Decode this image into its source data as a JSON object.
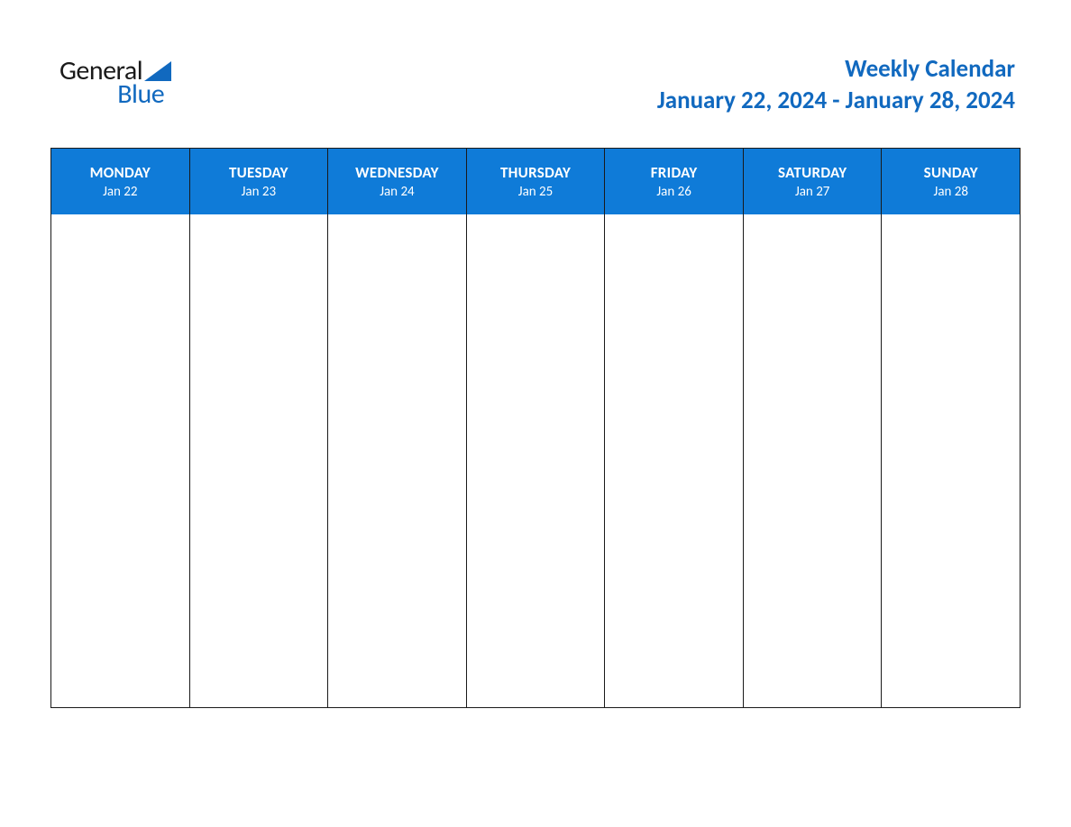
{
  "logo": {
    "text_top": "General",
    "text_bottom": "Blue",
    "top_color": "#1a1a1a",
    "bottom_color": "#1169bf",
    "triangle_color": "#1169bf"
  },
  "header": {
    "title": "Weekly Calendar",
    "date_range": "January 22, 2024 - January 28, 2024",
    "title_color": "#1169bf",
    "title_fontsize": 27,
    "title_fontweight": 700
  },
  "calendar": {
    "type": "table",
    "header_bg": "#0f7bd8",
    "header_text_color": "#ffffff",
    "border_color": "#1a1a1a",
    "body_bg": "#ffffff",
    "day_name_fontsize": 17,
    "day_date_fontsize": 15,
    "columns": [
      {
        "day": "MONDAY",
        "date": "Jan 22"
      },
      {
        "day": "TUESDAY",
        "date": "Jan 23"
      },
      {
        "day": "WEDNESDAY",
        "date": "Jan 24"
      },
      {
        "day": "THURSDAY",
        "date": "Jan 25"
      },
      {
        "day": "FRIDAY",
        "date": "Jan 26"
      },
      {
        "day": "SATURDAY",
        "date": "Jan 27"
      },
      {
        "day": "SUNDAY",
        "date": "Jan 28"
      }
    ]
  }
}
